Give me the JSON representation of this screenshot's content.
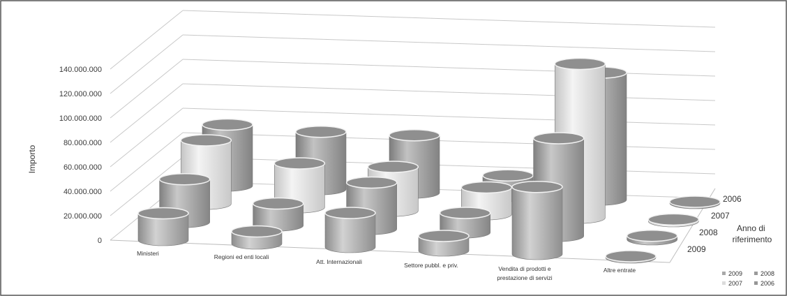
{
  "chart_data": {
    "type": "bar",
    "subtype": "3d-cylinder",
    "title": "",
    "ylabel": "Importo",
    "depth_axis_title": "Anno di riferimento",
    "ylim": [
      0,
      140000000
    ],
    "y_ticks": [
      "0",
      "20.000.000",
      "40.000.000",
      "60.000.000",
      "80.000.000",
      "100.000.000",
      "120.000.000",
      "140.000.000"
    ],
    "categories": [
      "Ministeri",
      "Regioni ed enti locali",
      "Att. Internazionali",
      "Settore pubbl. e priv.",
      "Vendita di prodotti e prestazione di servizi",
      "Altre entrate"
    ],
    "series": [
      {
        "name": "2009",
        "values": [
          22000000,
          10000000,
          28000000,
          12000000,
          55000000,
          0
        ]
      },
      {
        "name": "2008",
        "values": [
          35000000,
          18000000,
          38000000,
          16000000,
          80000000,
          3000000
        ]
      },
      {
        "name": "2007",
        "values": [
          52000000,
          36000000,
          36000000,
          22000000,
          126000000,
          1500000
        ]
      },
      {
        "name": "2006",
        "values": [
          50000000,
          47000000,
          47000000,
          17000000,
          104000000,
          1000000
        ]
      }
    ],
    "legend": [
      "2009",
      "2008",
      "2007",
      "2006"
    ],
    "legend_position": "bottom-right",
    "grid": true,
    "colors": {
      "2009": "#a8a8a8",
      "2008": "#9a9a9a",
      "2007": "#dcdcdc",
      "2006": "#969696"
    }
  }
}
